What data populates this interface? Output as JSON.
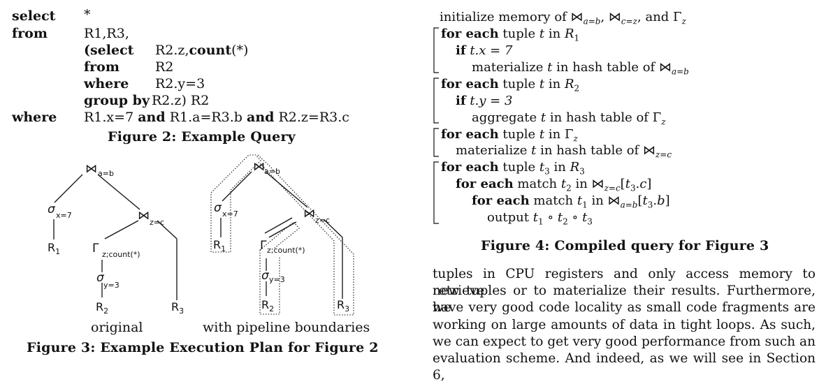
{
  "query": {
    "rows": [
      {
        "kw": "select",
        "kw2": "",
        "c1": "*",
        "c2": ""
      },
      {
        "kw": "from",
        "kw2": "",
        "c1": "R1,R3,",
        "c2": ""
      },
      {
        "kw": "",
        "kw2": "(select",
        "c1": "",
        "c2": "R2.z,count(*)"
      },
      {
        "kw": "",
        "kw2": "from",
        "c1": "",
        "c2": "R2"
      },
      {
        "kw": "",
        "kw2": "where",
        "c1": "",
        "c2": "R2.y=3"
      },
      {
        "kw": "",
        "kw2": "group by",
        "c1": "",
        "c2": "R2.z) R2"
      },
      {
        "kw": "where",
        "kw2": "",
        "c1": "R1.x=7 and R1.a=R3.b and R2.z=R3.c",
        "c2": ""
      }
    ],
    "row1_kw": "select",
    "row1_val": "*",
    "row2_kw": "from",
    "row2_val": "R1,R3,",
    "row3_kw": "(select",
    "row3_val_a": "R2.z,",
    "row3_val_b": "count",
    "row3_val_c": "(*)",
    "row4_kw": "from",
    "row4_val": "R2",
    "row5_kw": "where",
    "row5_val": "R2.y=3",
    "row6_kw": "group by",
    "row6_val": "R2.z) R2",
    "row7_kw": "where",
    "row7_a": "R1.x=7",
    "row7_and1": "and",
    "row7_b": "R1.a=R3.b",
    "row7_and2": "and",
    "row7_c": "R2.z=R3.c",
    "caption": "Figure 2: Example Query"
  },
  "plan": {
    "left_label": "original",
    "right_label": "with pipeline boundaries",
    "join_ab": "⋈",
    "sub_ab": "a=b",
    "join_zc": "⋈",
    "sub_zc": "z=c",
    "sigma": "σ",
    "sub_x7": "x=7",
    "sub_y3": "y=3",
    "gamma": "Γ",
    "sub_gamma": "z;count(*)",
    "r1": "R",
    "r2": "R",
    "r3": "R",
    "r1_sub": "1",
    "r2_sub": "2",
    "r3_sub": "3",
    "caption": "Figure 3: Example Execution Plan for Figure 2"
  },
  "algorithm": {
    "l0": "initialize memory of",
    "l0_tail": ", and",
    "l1_kw": "for each",
    "l1_a": "tuple",
    "l1_t": "t",
    "l1_in": "in",
    "l1_r": "R",
    "l2_kw": "if",
    "l2_expr": "t.x = 7",
    "l3": "materialize",
    "l3_b": "in hash table of",
    "l4_kw": "for each",
    "l4_a": "tuple",
    "l4_in": "in",
    "l5_kw": "if",
    "l5_expr": "t.y = 3",
    "l6": "aggregate",
    "l6_b": "in hash table of",
    "l7_kw": "for each",
    "l7_a": "tuple",
    "l7_in": "in",
    "l8": "materialize",
    "l8_b": "in hash table of",
    "l9_kw": "for each",
    "l9_a": "tuple",
    "l9_in": "in",
    "l10_kw": "for each",
    "l10_a": "match",
    "l10_in": "in",
    "l11_kw": "for each",
    "l11_a": "match",
    "l11_in": "in",
    "l12": "output",
    "caption": "Figure 4: Compiled query for Figure 3"
  },
  "paragraph": {
    "lines": [
      "tuples in CPU registers and only access memory to retrieve",
      "new tuples or to materialize their results. Furthermore, we",
      "have very good code locality as small code fragments are",
      "working on large amounts of data in tight loops. As such,",
      "we can expect to get very good performance from such an",
      "evaluation scheme. And indeed, as we will see in Section 6,"
    ]
  }
}
